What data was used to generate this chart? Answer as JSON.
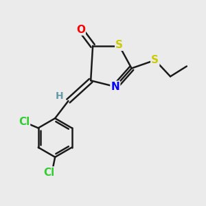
{
  "background_color": "#ebebeb",
  "bond_color": "#1a1a1a",
  "atom_colors": {
    "O": "#ff0000",
    "S": "#cccc00",
    "N": "#0000ff",
    "Cl": "#33cc33",
    "H": "#6699aa",
    "C": "#1a1a1a"
  },
  "font_size_atoms": 11,
  "font_size_h": 10,
  "line_width": 1.8,
  "figsize": [
    3.0,
    3.0
  ],
  "dpi": 100,
  "xlim": [
    0,
    10
  ],
  "ylim": [
    0,
    10
  ]
}
